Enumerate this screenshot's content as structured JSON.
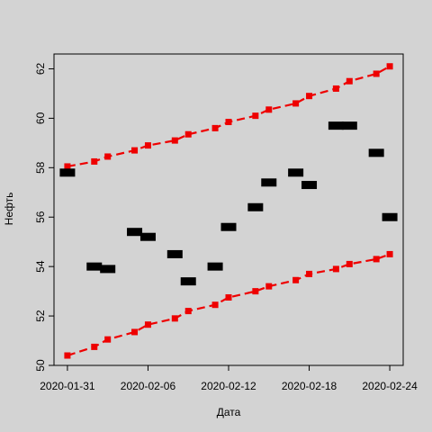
{
  "chart_data": {
    "type": "scatter",
    "title": "",
    "xlabel": "Дата",
    "ylabel": "Нефть",
    "x_tick_labels": [
      "2020-01-31",
      "2020-02-06",
      "2020-02-12",
      "2020-02-18",
      "2020-02-24"
    ],
    "y_tick_labels": [
      "50",
      "52",
      "54",
      "56",
      "58",
      "60",
      "62"
    ],
    "xlim": [
      "2020-01-30",
      "2020-02-25"
    ],
    "ylim": [
      50,
      62.6
    ],
    "grid": false,
    "legend": "none",
    "colors": {
      "points": "#000000",
      "bounds": "#ee0000",
      "background": "#d3d3d3"
    },
    "point_shape": "filled-rectangle",
    "x": [
      "2020-01-31",
      "2020-02-01",
      "2020-02-03",
      "2020-02-04",
      "2020-02-06",
      "2020-02-07",
      "2020-02-08",
      "2020-02-10",
      "2020-02-11",
      "2020-02-12",
      "2020-02-14",
      "2020-02-15",
      "2020-02-17",
      "2020-02-18",
      "2020-02-20",
      "2020-02-21",
      "2020-02-22",
      "2020-02-24"
    ],
    "series": [
      {
        "values": [
          57.8,
          54.0,
          53.9,
          55.4,
          55.2,
          54.5,
          53.4,
          54.0,
          55.6,
          56.4,
          57.4,
          57.8,
          57.3,
          59.7,
          59.7,
          58.6,
          56.0,
          56.0
        ],
        "x": [
          "2020-01-31",
          "2020-02-02",
          "2020-02-03",
          "2020-02-05",
          "2020-02-06",
          "2020-02-08",
          "2020-02-09",
          "2020-02-11",
          "2020-02-12",
          "2020-02-14",
          "2020-02-15",
          "2020-02-17",
          "2020-02-18",
          "2020-02-20",
          "2020-02-21",
          "2020-02-23",
          "2020-02-24",
          "2020-02-24"
        ]
      },
      {
        "x": [
          "2020-01-31",
          "2020-02-02",
          "2020-02-03",
          "2020-02-05",
          "2020-02-06",
          "2020-02-08",
          "2020-02-09",
          "2020-02-11",
          "2020-02-12",
          "2020-02-14",
          "2020-02-15",
          "2020-02-17",
          "2020-02-18",
          "2020-02-20",
          "2020-02-21",
          "2020-02-23",
          "2020-02-24"
        ],
        "values": [
          58.05,
          58.25,
          58.45,
          58.7,
          58.9,
          59.1,
          59.35,
          59.6,
          59.85,
          60.1,
          60.35,
          60.6,
          60.9,
          61.2,
          61.5,
          61.8,
          62.1
        ]
      },
      {
        "x": [
          "2020-01-31",
          "2020-02-02",
          "2020-02-03",
          "2020-02-05",
          "2020-02-06",
          "2020-02-08",
          "2020-02-09",
          "2020-02-11",
          "2020-02-12",
          "2020-02-14",
          "2020-02-15",
          "2020-02-17",
          "2020-02-18",
          "2020-02-20",
          "2020-02-21",
          "2020-02-23",
          "2020-02-24"
        ],
        "values": [
          50.4,
          50.75,
          51.05,
          51.35,
          51.65,
          51.9,
          52.2,
          52.45,
          52.75,
          53.0,
          53.2,
          53.45,
          53.7,
          53.9,
          54.1,
          54.3,
          54.5
        ]
      }
    ]
  }
}
